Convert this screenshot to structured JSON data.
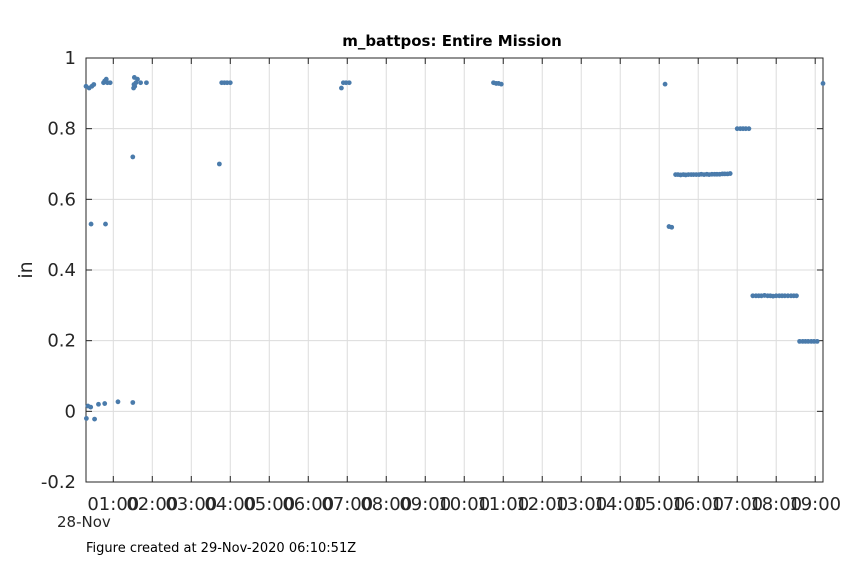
{
  "chart_data": {
    "type": "scatter",
    "title": "m_battpos: Entire Mission",
    "xlabel": "",
    "ylabel": "in",
    "date_label": "28-Nov",
    "xlim_hours": [
      0.3,
      19.2
    ],
    "ylim": [
      -0.2,
      1.0
    ],
    "yticks": [
      -0.2,
      0,
      0.2,
      0.4,
      0.6,
      0.8,
      1.0
    ],
    "ytick_labels": [
      "-0.2",
      "0",
      "0.2",
      "0.4",
      "0.6",
      "0.8",
      "1"
    ],
    "xtick_hours": [
      1,
      2,
      3,
      4,
      5,
      6,
      7,
      8,
      9,
      10,
      11,
      12,
      13,
      14,
      15,
      16,
      17,
      18,
      19
    ],
    "xtick_labels": [
      "01:00",
      "02:00",
      "03:00",
      "04:00",
      "05:00",
      "06:00",
      "07:00",
      "08:00",
      "09:00",
      "10:00",
      "11:00",
      "12:00",
      "13:00",
      "14:00",
      "15:00",
      "16:00",
      "17:00",
      "18:00",
      "19:00"
    ],
    "grid": true,
    "marker_color": "#4a7bab",
    "points": [
      [
        0.3,
        0.92
      ],
      [
        0.38,
        0.915
      ],
      [
        0.45,
        0.92
      ],
      [
        0.5,
        0.925
      ],
      [
        0.75,
        0.93
      ],
      [
        0.78,
        0.935
      ],
      [
        0.82,
        0.94
      ],
      [
        0.85,
        0.93
      ],
      [
        0.92,
        0.93
      ],
      [
        0.31,
        -0.02
      ],
      [
        0.35,
        0.015
      ],
      [
        0.42,
        0.012
      ],
      [
        0.52,
        -0.022
      ],
      [
        0.62,
        0.02
      ],
      [
        0.78,
        0.022
      ],
      [
        1.12,
        0.027
      ],
      [
        1.5,
        0.025
      ],
      [
        0.43,
        0.53
      ],
      [
        0.8,
        0.53
      ],
      [
        1.5,
        0.72
      ],
      [
        1.52,
        0.915
      ],
      [
        1.55,
        0.92
      ],
      [
        1.53,
        0.925
      ],
      [
        1.58,
        0.93
      ],
      [
        1.62,
        0.94
      ],
      [
        1.54,
        0.945
      ],
      [
        1.7,
        0.93
      ],
      [
        1.85,
        0.93
      ],
      [
        3.72,
        0.7
      ],
      [
        3.78,
        0.93
      ],
      [
        3.85,
        0.93
      ],
      [
        3.92,
        0.93
      ],
      [
        4.0,
        0.93
      ],
      [
        6.85,
        0.915
      ],
      [
        6.9,
        0.93
      ],
      [
        6.97,
        0.93
      ],
      [
        7.05,
        0.93
      ],
      [
        10.75,
        0.93
      ],
      [
        10.82,
        0.928
      ],
      [
        10.88,
        0.928
      ],
      [
        10.95,
        0.926
      ],
      [
        15.15,
        0.926
      ],
      [
        15.25,
        0.523
      ],
      [
        15.32,
        0.521
      ],
      [
        15.42,
        0.67
      ],
      [
        15.48,
        0.67
      ],
      [
        15.55,
        0.669
      ],
      [
        15.62,
        0.67
      ],
      [
        15.68,
        0.669
      ],
      [
        15.75,
        0.67
      ],
      [
        15.82,
        0.67
      ],
      [
        15.88,
        0.67
      ],
      [
        15.95,
        0.67
      ],
      [
        16.02,
        0.67
      ],
      [
        16.08,
        0.671
      ],
      [
        16.15,
        0.67
      ],
      [
        16.22,
        0.671
      ],
      [
        16.28,
        0.67
      ],
      [
        16.35,
        0.671
      ],
      [
        16.42,
        0.671
      ],
      [
        16.48,
        0.671
      ],
      [
        16.55,
        0.671
      ],
      [
        16.62,
        0.672
      ],
      [
        16.68,
        0.672
      ],
      [
        16.75,
        0.672
      ],
      [
        16.82,
        0.673
      ],
      [
        17.0,
        0.8
      ],
      [
        17.08,
        0.8
      ],
      [
        17.15,
        0.8
      ],
      [
        17.22,
        0.8
      ],
      [
        17.3,
        0.8
      ],
      [
        17.4,
        0.327
      ],
      [
        17.48,
        0.327
      ],
      [
        17.55,
        0.327
      ],
      [
        17.62,
        0.327
      ],
      [
        17.7,
        0.328
      ],
      [
        17.78,
        0.327
      ],
      [
        17.85,
        0.327
      ],
      [
        17.92,
        0.326
      ],
      [
        18.0,
        0.327
      ],
      [
        18.08,
        0.327
      ],
      [
        18.15,
        0.327
      ],
      [
        18.22,
        0.327
      ],
      [
        18.3,
        0.327
      ],
      [
        18.38,
        0.327
      ],
      [
        18.45,
        0.327
      ],
      [
        18.52,
        0.327
      ],
      [
        18.6,
        0.198
      ],
      [
        18.68,
        0.198
      ],
      [
        18.75,
        0.198
      ],
      [
        18.82,
        0.198
      ],
      [
        18.9,
        0.198
      ],
      [
        18.97,
        0.198
      ],
      [
        19.05,
        0.198
      ],
      [
        19.2,
        0.928
      ]
    ]
  },
  "footer": "Figure created at 29-Nov-2020 06:10:51Z"
}
